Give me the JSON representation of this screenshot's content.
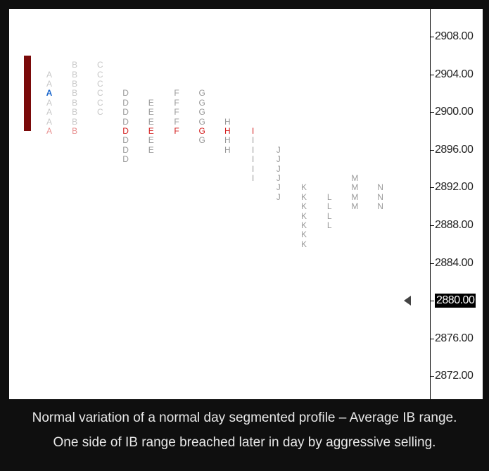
{
  "chart_data": {
    "type": "tpo_profile",
    "y_ticks": [
      "2908.00",
      "2904.00",
      "2900.00",
      "2896.00",
      "2892.00",
      "2888.00",
      "2884.00",
      "2880.00",
      "2876.00",
      "2872.00"
    ],
    "current_price_label": "2880.00",
    "columns": [
      {
        "letter": "A",
        "rows": [
          2904,
          2903,
          2902,
          2901,
          2900,
          2899,
          2898
        ]
      },
      {
        "letter": "B",
        "rows": [
          2905,
          2904,
          2903,
          2902,
          2901,
          2900,
          2899,
          2898
        ]
      },
      {
        "letter": "C",
        "rows": [
          2905,
          2904,
          2903,
          2902,
          2901,
          2900
        ]
      },
      {
        "letter": "D",
        "rows": [
          2902,
          2901,
          2900,
          2899,
          2898,
          2897,
          2896,
          2895
        ]
      },
      {
        "letter": "E",
        "rows": [
          2901,
          2900,
          2899,
          2898,
          2897,
          2896
        ]
      },
      {
        "letter": "F",
        "rows": [
          2902,
          2901,
          2900,
          2899,
          2898
        ]
      },
      {
        "letter": "G",
        "rows": [
          2902,
          2901,
          2900,
          2899,
          2898,
          2897
        ]
      },
      {
        "letter": "H",
        "rows": [
          2899,
          2898,
          2897,
          2896
        ]
      },
      {
        "letter": "I",
        "rows": [
          2898,
          2897,
          2896,
          2895,
          2894,
          2893
        ]
      },
      {
        "letter": "J",
        "rows": [
          2896,
          2895,
          2894,
          2893,
          2892,
          2891
        ]
      },
      {
        "letter": "K",
        "rows": [
          2892,
          2891,
          2890,
          2889,
          2888,
          2887,
          2886
        ]
      },
      {
        "letter": "L",
        "rows": [
          2891,
          2890,
          2889,
          2888
        ]
      },
      {
        "letter": "M",
        "rows": [
          2893,
          2892,
          2891,
          2890
        ]
      },
      {
        "letter": "N",
        "rows": [
          2892,
          2891,
          2890
        ]
      }
    ],
    "highlight_row": 2898,
    "open_marker": {
      "letter": "A",
      "row": 2902
    },
    "initial_balance_range": [
      2898,
      2906
    ],
    "colors": {
      "normal": "#9a9a9a",
      "early": "#c8c8c8",
      "highlight": "#d42020",
      "highlight_early": "#e89090",
      "open": "#1a66cc",
      "ib_bar": "#7a0a0a"
    }
  },
  "caption": {
    "line1": "Normal variation of a normal day segmented profile – Average IB range.",
    "line2": "One side of IB range breached later in day by aggressive selling."
  }
}
